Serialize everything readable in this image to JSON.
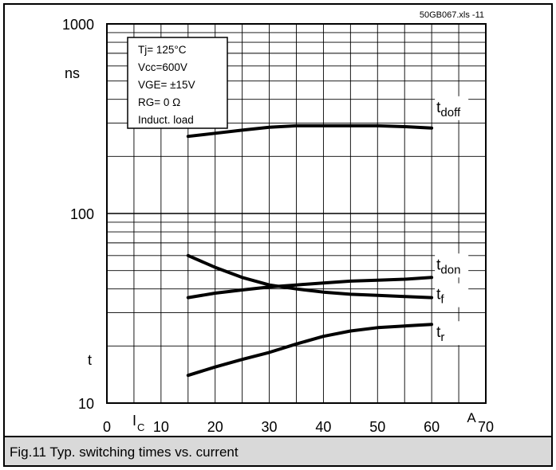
{
  "chart_data": {
    "type": "line",
    "title": "",
    "file_label": "50GB067.xls  -11",
    "xlabel_symbol": "I",
    "xlabel_subscript": "C",
    "xunit": "A",
    "yunit": "ns",
    "ylabel": "t",
    "xlim": [
      0,
      70
    ],
    "ylim": [
      10,
      1000
    ],
    "yscale": "log",
    "grid": true,
    "x_ticks": [
      10,
      20,
      30,
      40,
      50,
      60,
      70
    ],
    "x_tick_labels": [
      "10",
      "20",
      "30",
      "40",
      "50",
      "60",
      "70"
    ],
    "x_zero_label": "0",
    "y_ticks": [
      10,
      100,
      1000
    ],
    "y_tick_labels": [
      "10",
      "100",
      "1000"
    ],
    "conditions": [
      "Tj= 125°C",
      "Vcc=600V",
      "VGE= ±15V",
      "RG=  0 Ω",
      "Induct. load"
    ],
    "series": [
      {
        "name": "t_doff",
        "label_main": "t",
        "label_sub": "doff",
        "x": [
          15,
          20,
          25,
          30,
          35,
          40,
          45,
          50,
          55,
          60
        ],
        "y": [
          255,
          265,
          275,
          285,
          290,
          290,
          290,
          290,
          287,
          282
        ]
      },
      {
        "name": "t_don",
        "label_main": "t",
        "label_sub": "don",
        "x": [
          15,
          20,
          25,
          30,
          35,
          40,
          45,
          50,
          55,
          60
        ],
        "y": [
          36,
          38,
          39.5,
          41,
          42,
          43,
          44,
          44.5,
          45,
          46
        ]
      },
      {
        "name": "t_f",
        "label_main": "t",
        "label_sub": "f",
        "x": [
          15,
          20,
          25,
          30,
          35,
          40,
          45,
          50,
          55,
          60
        ],
        "y": [
          60,
          52,
          46,
          42,
          40,
          38.5,
          37.5,
          37,
          36.5,
          36
        ]
      },
      {
        "name": "t_r",
        "label_main": "t",
        "label_sub": "r",
        "x": [
          15,
          20,
          25,
          30,
          35,
          40,
          45,
          50,
          55,
          60
        ],
        "y": [
          14,
          15.5,
          17,
          18.5,
          20.5,
          22.5,
          24,
          25,
          25.5,
          26
        ]
      }
    ]
  },
  "caption": "Fig.11 Typ. switching times vs. current"
}
